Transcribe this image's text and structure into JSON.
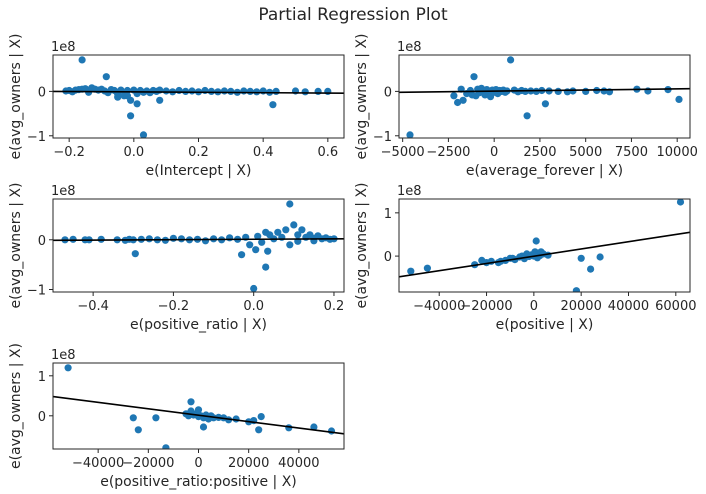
{
  "title": "Partial Regression Plot",
  "point_color": "#1f77b4",
  "line_color": "#000000",
  "chart_data": [
    {
      "type": "scatter",
      "xlabel": "e(Intercept | X)",
      "ylabel": "e(avg_owners | X)",
      "y_multiplier": "1e8",
      "xlim": [
        -0.25,
        0.65
      ],
      "ylim": [
        -1.05,
        0.82
      ],
      "xticks": [
        -0.2,
        0.0,
        0.2,
        0.4,
        0.6
      ],
      "xtick_labels": [
        "−0.2",
        "0.0",
        "0.2",
        "0.4",
        "0.6"
      ],
      "yticks": [
        -1,
        0
      ],
      "ytick_labels": [
        "−1",
        "0"
      ],
      "fit_line": [
        [
          -0.25,
          0.0
        ],
        [
          0.65,
          -0.04
        ]
      ],
      "points": [
        [
          -0.16,
          0.71
        ],
        [
          -0.21,
          0.01
        ],
        [
          -0.2,
          0.02
        ],
        [
          -0.19,
          -0.01
        ],
        [
          -0.18,
          0.03
        ],
        [
          -0.17,
          0.04
        ],
        [
          -0.16,
          0.05
        ],
        [
          -0.15,
          0.06
        ],
        [
          -0.14,
          -0.02
        ],
        [
          -0.13,
          0.08
        ],
        [
          -0.12,
          0.05
        ],
        [
          -0.11,
          0.03
        ],
        [
          -0.1,
          0.05
        ],
        [
          -0.09,
          0.01
        ],
        [
          -0.08,
          -0.03
        ],
        [
          -0.07,
          0.04
        ],
        [
          -0.06,
          0.02
        ],
        [
          -0.05,
          -0.06
        ],
        [
          -0.04,
          0.03
        ],
        [
          -0.03,
          -0.1
        ],
        [
          -0.02,
          0.02
        ],
        [
          -0.01,
          -0.2
        ],
        [
          0.0,
          0.03
        ],
        [
          0.01,
          -0.05
        ],
        [
          0.02,
          0.02
        ],
        [
          0.03,
          -0.02
        ],
        [
          0.04,
          0.01
        ],
        [
          0.05,
          -0.03
        ],
        [
          0.06,
          0.02
        ],
        [
          0.07,
          0.0
        ],
        [
          0.08,
          0.03
        ],
        [
          0.1,
          0.01
        ],
        [
          0.12,
          -0.01
        ],
        [
          0.14,
          0.02
        ],
        [
          0.16,
          0.0
        ],
        [
          0.18,
          0.01
        ],
        [
          0.2,
          -0.01
        ],
        [
          0.22,
          0.02
        ],
        [
          0.24,
          0.0
        ],
        [
          0.26,
          -0.01
        ],
        [
          0.28,
          0.01
        ],
        [
          0.3,
          0.0
        ],
        [
          0.32,
          -0.02
        ],
        [
          0.34,
          0.01
        ],
        [
          0.36,
          0.0
        ],
        [
          0.38,
          -0.01
        ],
        [
          0.4,
          0.01
        ],
        [
          0.42,
          -0.02
        ],
        [
          0.44,
          0.0
        ],
        [
          0.5,
          0.01
        ],
        [
          0.53,
          -0.01
        ],
        [
          0.6,
          0.0
        ],
        [
          -0.085,
          0.33
        ],
        [
          -0.05,
          -0.13
        ],
        [
          -0.02,
          -0.1
        ],
        [
          0.01,
          -0.28
        ],
        [
          0.03,
          -0.98
        ],
        [
          -0.01,
          -0.55
        ],
        [
          0.08,
          -0.2
        ],
        [
          0.43,
          -0.3
        ],
        [
          0.57,
          0.0
        ]
      ]
    },
    {
      "type": "scatter",
      "xlabel": "e(average_forever | X)",
      "ylabel": "e(avg_owners | X)",
      "y_multiplier": "1e8",
      "xlim": [
        -5200,
        10700
      ],
      "ylim": [
        -1.05,
        0.82
      ],
      "xticks": [
        -5000,
        -2500,
        0,
        2500,
        5000,
        7500,
        10000
      ],
      "xtick_labels": [
        "−5000",
        "−2500",
        "0",
        "2500",
        "5000",
        "7500",
        "10000"
      ],
      "yticks": [
        -1,
        0
      ],
      "ytick_labels": [
        "−1",
        "0"
      ],
      "fit_line": [
        [
          -5200,
          -0.02
        ],
        [
          10700,
          0.06
        ]
      ],
      "points": [
        [
          -4600,
          -0.98
        ],
        [
          -2200,
          -0.1
        ],
        [
          -2000,
          -0.25
        ],
        [
          -1800,
          0.05
        ],
        [
          -1500,
          -0.05
        ],
        [
          -1300,
          0.02
        ],
        [
          -1100,
          0.33
        ],
        [
          -1000,
          -0.1
        ],
        [
          -900,
          0.05
        ],
        [
          -800,
          -0.03
        ],
        [
          -700,
          0.07
        ],
        [
          -600,
          0.01
        ],
        [
          -500,
          -0.08
        ],
        [
          -400,
          0.04
        ],
        [
          -300,
          0.0
        ],
        [
          -200,
          -0.12
        ],
        [
          -100,
          0.03
        ],
        [
          0,
          -0.02
        ],
        [
          100,
          0.04
        ],
        [
          200,
          -0.05
        ],
        [
          300,
          0.02
        ],
        [
          400,
          0.0
        ],
        [
          500,
          0.03
        ],
        [
          600,
          -0.02
        ],
        [
          700,
          0.01
        ],
        [
          900,
          0.71
        ],
        [
          1100,
          0.03
        ],
        [
          1300,
          -0.01
        ],
        [
          1500,
          0.02
        ],
        [
          1700,
          0.0
        ],
        [
          1800,
          -0.55
        ],
        [
          2000,
          0.01
        ],
        [
          2300,
          0.0
        ],
        [
          2600,
          0.02
        ],
        [
          2800,
          -0.28
        ],
        [
          3000,
          0.01
        ],
        [
          3500,
          0.0
        ],
        [
          4000,
          -0.01
        ],
        [
          4300,
          0.01
        ],
        [
          5000,
          0.0
        ],
        [
          5600,
          0.02
        ],
        [
          6000,
          0.01
        ],
        [
          6300,
          -0.01
        ],
        [
          7800,
          0.05
        ],
        [
          8400,
          0.01
        ],
        [
          9500,
          0.04
        ],
        [
          10100,
          -0.18
        ],
        [
          -1700,
          -0.2
        ],
        [
          -1200,
          -0.08
        ]
      ]
    },
    {
      "type": "scatter",
      "xlabel": "e(positive_ratio | X)",
      "ylabel": "e(avg_owners | X)",
      "y_multiplier": "1e8",
      "xlim": [
        -0.5,
        0.225
      ],
      "ylim": [
        -1.05,
        0.82
      ],
      "xticks": [
        -0.4,
        -0.2,
        0.0,
        0.2
      ],
      "xtick_labels": [
        "−0.4",
        "−0.2",
        "0.0",
        "0.2"
      ],
      "yticks": [
        -1,
        0
      ],
      "ytick_labels": [
        "−1",
        "0"
      ],
      "fit_line": [
        [
          -0.5,
          -0.01
        ],
        [
          0.225,
          0.02
        ]
      ],
      "points": [
        [
          -0.47,
          0.0
        ],
        [
          -0.45,
          0.01
        ],
        [
          -0.42,
          0.0
        ],
        [
          -0.41,
          0.0
        ],
        [
          -0.38,
          0.01
        ],
        [
          -0.34,
          0.0
        ],
        [
          -0.32,
          -0.01
        ],
        [
          -0.31,
          0.01
        ],
        [
          -0.3,
          0.0
        ],
        [
          -0.295,
          -0.28
        ],
        [
          -0.28,
          0.01
        ],
        [
          -0.26,
          0.02
        ],
        [
          -0.24,
          0.0
        ],
        [
          -0.22,
          -0.01
        ],
        [
          -0.2,
          0.03
        ],
        [
          -0.18,
          0.02
        ],
        [
          -0.16,
          0.0
        ],
        [
          -0.14,
          0.01
        ],
        [
          -0.12,
          -0.02
        ],
        [
          -0.1,
          0.02
        ],
        [
          -0.08,
          0.0
        ],
        [
          -0.06,
          0.04
        ],
        [
          -0.04,
          0.01
        ],
        [
          -0.02,
          0.05
        ],
        [
          -0.01,
          -0.1
        ],
        [
          0.0,
          -0.98
        ],
        [
          0.005,
          -0.2
        ],
        [
          0.01,
          0.07
        ],
        [
          0.02,
          -0.05
        ],
        [
          0.03,
          -0.55
        ],
        [
          0.04,
          0.1
        ],
        [
          0.05,
          0.02
        ],
        [
          0.06,
          0.15
        ],
        [
          0.07,
          0.05
        ],
        [
          0.08,
          0.2
        ],
        [
          0.09,
          0.72
        ],
        [
          0.1,
          0.3
        ],
        [
          0.11,
          0.1
        ],
        [
          0.12,
          0.2
        ],
        [
          0.13,
          0.05
        ],
        [
          0.14,
          0.1
        ],
        [
          0.15,
          0.03
        ],
        [
          0.16,
          0.08
        ],
        [
          0.17,
          0.02
        ],
        [
          0.18,
          0.04
        ],
        [
          0.19,
          0.01
        ],
        [
          0.2,
          0.02
        ],
        [
          0.09,
          -0.1
        ],
        [
          0.11,
          -0.03
        ],
        [
          0.15,
          -0.02
        ],
        [
          0.03,
          0.15
        ],
        [
          -0.03,
          -0.3
        ],
        [
          0.035,
          -0.23
        ]
      ]
    },
    {
      "type": "scatter",
      "xlabel": "e(positive | X)",
      "ylabel": "e(avg_owners | X)",
      "y_multiplier": "1e8",
      "xlim": [
        -57000,
        66000
      ],
      "ylim": [
        -0.83,
        1.32
      ],
      "xticks": [
        -40000,
        -20000,
        0,
        20000,
        40000,
        60000
      ],
      "xtick_labels": [
        "−40000",
        "−20000",
        "0",
        "20000",
        "40000",
        "60000"
      ],
      "yticks": [
        0,
        1
      ],
      "ytick_labels": [
        "0",
        "1"
      ],
      "fit_line": [
        [
          -57000,
          -0.48
        ],
        [
          66000,
          0.55
        ]
      ],
      "points": [
        [
          62000,
          1.25
        ],
        [
          -52000,
          -0.35
        ],
        [
          -45000,
          -0.28
        ],
        [
          -25000,
          -0.2
        ],
        [
          -22000,
          -0.1
        ],
        [
          -18000,
          -0.12
        ],
        [
          -15000,
          -0.15
        ],
        [
          -12000,
          -0.1
        ],
        [
          -10000,
          -0.05
        ],
        [
          -8000,
          -0.08
        ],
        [
          -6000,
          -0.02
        ],
        [
          -5000,
          0.0
        ],
        [
          -4000,
          -0.06
        ],
        [
          -3000,
          0.05
        ],
        [
          -2000,
          -0.01
        ],
        [
          -1000,
          0.03
        ],
        [
          0,
          0.0
        ],
        [
          500,
          0.1
        ],
        [
          1000,
          0.02
        ],
        [
          1500,
          -0.04
        ],
        [
          2000,
          0.05
        ],
        [
          2500,
          0.01
        ],
        [
          3000,
          0.1
        ],
        [
          1000,
          0.35
        ],
        [
          4000,
          0.05
        ],
        [
          6000,
          0.02
        ],
        [
          18000,
          -0.8
        ],
        [
          20000,
          -0.05
        ],
        [
          24000,
          -0.3
        ],
        [
          28000,
          -0.02
        ],
        [
          -20000,
          -0.15
        ],
        [
          -14000,
          -0.12
        ],
        [
          -9000,
          -0.05
        ]
      ]
    },
    {
      "type": "scatter",
      "xlabel": "e(positive_ratio:positive | X)",
      "ylabel": "e(avg_owners | X)",
      "y_multiplier": "1e8",
      "xlim": [
        -58000,
        58000
      ],
      "ylim": [
        -0.83,
        1.32
      ],
      "xticks": [
        -40000,
        -20000,
        0,
        20000,
        40000
      ],
      "xtick_labels": [
        "−40000",
        "−20000",
        "0",
        "20000",
        "40000"
      ],
      "yticks": [
        0,
        1
      ],
      "ytick_labels": [
        "0",
        "1"
      ],
      "fit_line": [
        [
          -58000,
          0.48
        ],
        [
          58000,
          -0.45
        ]
      ],
      "points": [
        [
          -52000,
          1.2
        ],
        [
          -26000,
          -0.05
        ],
        [
          -24000,
          -0.35
        ],
        [
          -17000,
          -0.05
        ],
        [
          -13000,
          -0.8
        ],
        [
          -5000,
          0.05
        ],
        [
          -4000,
          0.0
        ],
        [
          -3000,
          0.12
        ],
        [
          -2000,
          0.02
        ],
        [
          -1000,
          0.05
        ],
        [
          0,
          -0.02
        ],
        [
          1000,
          0.0
        ],
        [
          2000,
          -0.05
        ],
        [
          3000,
          0.02
        ],
        [
          4000,
          -0.08
        ],
        [
          5000,
          0.0
        ],
        [
          6000,
          -0.05
        ],
        [
          8000,
          -0.04
        ],
        [
          10000,
          -0.05
        ],
        [
          12000,
          -0.1
        ],
        [
          15000,
          -0.08
        ],
        [
          20000,
          -0.15
        ],
        [
          22000,
          -0.12
        ],
        [
          25000,
          -0.02
        ],
        [
          24000,
          -0.35
        ],
        [
          36000,
          -0.3
        ],
        [
          46000,
          -0.28
        ],
        [
          53000,
          -0.38
        ],
        [
          -3000,
          0.35
        ],
        [
          2000,
          -0.28
        ],
        [
          0,
          0.15
        ]
      ]
    }
  ]
}
